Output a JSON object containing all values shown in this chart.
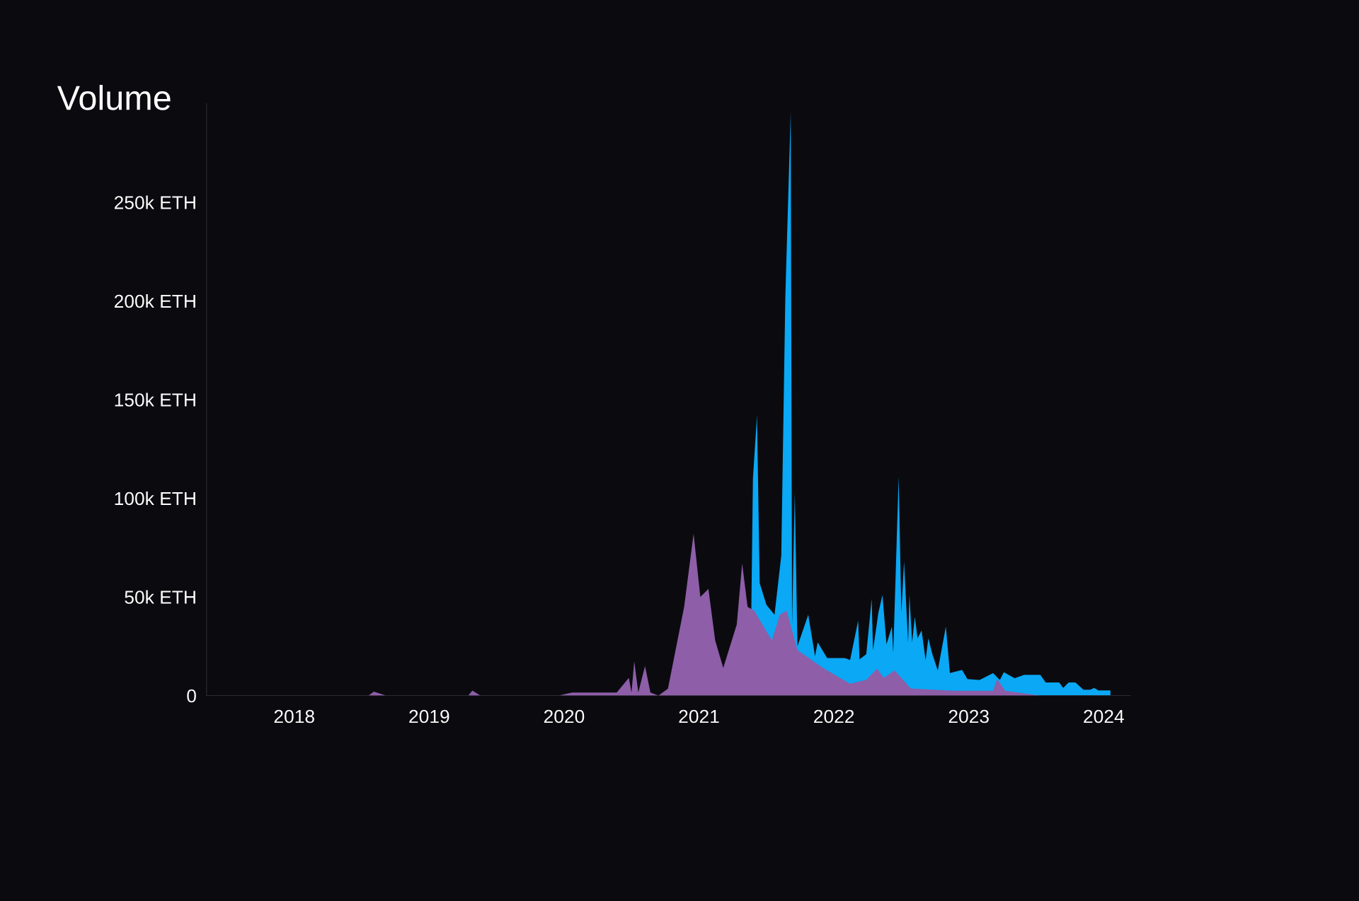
{
  "chart_data": {
    "type": "area",
    "title": "Volume",
    "xlim": [
      2017.35,
      2024.2
    ],
    "xticks": [
      2018,
      2019,
      2020,
      2021,
      2022,
      2023,
      2024
    ],
    "ylim": [
      0,
      300000
    ],
    "yticks": [
      {
        "value": 0,
        "label": "0"
      },
      {
        "value": 50000,
        "label": "50k ETH"
      },
      {
        "value": 100000,
        "label": "100k ETH"
      },
      {
        "value": 150000,
        "label": "150k ETH"
      },
      {
        "value": 200000,
        "label": "200k ETH"
      },
      {
        "value": 250000,
        "label": "250k ETH"
      }
    ],
    "grid": false,
    "legend": false,
    "series": [
      {
        "color": "#0aa8f5",
        "x": [
          2021.38,
          2021.4,
          2021.43,
          2021.45,
          2021.5,
          2021.56,
          2021.61,
          2021.64,
          2021.68,
          2021.69,
          2021.71,
          2021.73,
          2021.81,
          2021.86,
          2021.88,
          2021.95,
          2022.08,
          2022.12,
          2022.18,
          2022.19,
          2022.24,
          2022.28,
          2022.29,
          2022.33,
          2022.36,
          2022.39,
          2022.43,
          2022.44,
          2022.48,
          2022.5,
          2022.52,
          2022.55,
          2022.56,
          2022.58,
          2022.6,
          2022.62,
          2022.65,
          2022.68,
          2022.7,
          2022.73,
          2022.77,
          2022.83,
          2022.86,
          2022.95,
          2022.99,
          2023.08,
          2023.18,
          2023.23,
          2023.26,
          2023.34,
          2023.41,
          2023.53,
          2023.57,
          2023.67,
          2023.7,
          2023.74,
          2023.79,
          2023.85,
          2023.9,
          2023.93,
          2023.96,
          2024.05
        ],
        "values": [
          0,
          110000,
          142000,
          57000,
          46000,
          41000,
          71000,
          202000,
          296000,
          36000,
          103000,
          25000,
          41000,
          20000,
          27000,
          19000,
          19000,
          18000,
          38000,
          18400,
          21000,
          49000,
          23000,
          42000,
          51000,
          26000,
          35000,
          21500,
          111000,
          42000,
          68000,
          27000,
          51000,
          27000,
          40000,
          29000,
          33000,
          18000,
          29000,
          21000,
          12700,
          35000,
          11400,
          13000,
          8300,
          7900,
          11400,
          7900,
          11800,
          8800,
          10500,
          10500,
          6600,
          6600,
          3900,
          6600,
          6600,
          3000,
          3000,
          3900,
          2600,
          2600
        ]
      },
      {
        "color": "#8e5ea8",
        "x": [
          2017.73,
          2018.55,
          2018.59,
          2018.68,
          2019.29,
          2019.32,
          2019.38,
          2019.96,
          2020.06,
          2020.39,
          2020.48,
          2020.5,
          2020.52,
          2020.55,
          2020.6,
          2020.64,
          2020.7,
          2020.77,
          2020.89,
          2020.96,
          2021.01,
          2021.07,
          2021.12,
          2021.18,
          2021.28,
          2021.32,
          2021.36,
          2021.41,
          2021.47,
          2021.54,
          2021.6,
          2021.65,
          2021.73,
          2021.92,
          2022.12,
          2022.24,
          2022.32,
          2022.37,
          2022.45,
          2022.57,
          2022.89,
          2023.18,
          2023.21,
          2023.27,
          2023.53
        ],
        "values": [
          0,
          0,
          2000,
          0,
          0,
          2500,
          0,
          0,
          1500,
          1500,
          9000,
          1500,
          17500,
          1500,
          15000,
          1500,
          0,
          3500,
          45000,
          82000,
          50000,
          54000,
          28000,
          14000,
          36000,
          67000,
          45000,
          43000,
          36000,
          28000,
          41000,
          43000,
          23000,
          14000,
          6000,
          8000,
          13600,
          9000,
          12700,
          3600,
          2400,
          2400,
          8300,
          2400,
          0
        ]
      }
    ]
  }
}
